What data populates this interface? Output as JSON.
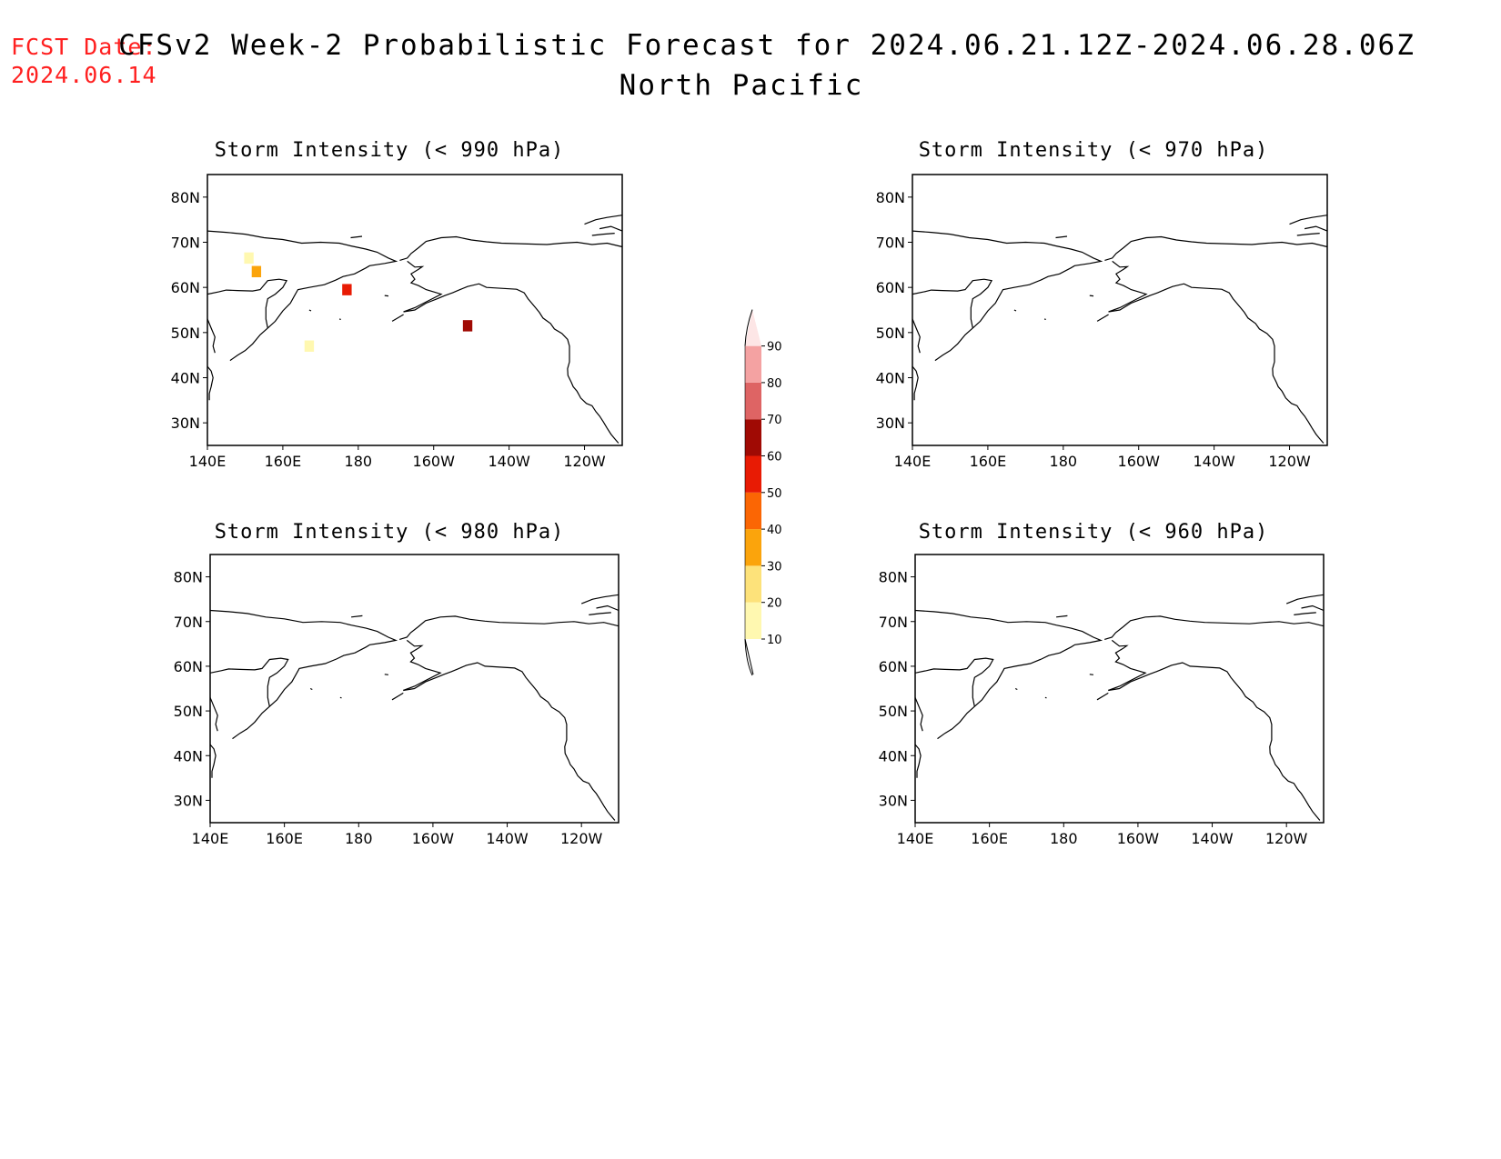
{
  "header": {
    "fcst_label": "FCST Date:",
    "fcst_date": "2024.06.14",
    "title": "CFSv2 Week-2 Probabilistic Forecast for 2024.06.21.12Z-2024.06.28.06Z",
    "subtitle": "North Pacific"
  },
  "panels": [
    {
      "id": "p990",
      "title": "Storm Intensity (< 990 hPa)"
    },
    {
      "id": "p970",
      "title": "Storm Intensity (< 970 hPa)"
    },
    {
      "id": "p980",
      "title": "Storm Intensity (< 980 hPa)"
    },
    {
      "id": "p960",
      "title": "Storm Intensity (< 960 hPa)"
    }
  ],
  "chart_data": {
    "type": "heatmap",
    "map_region": "North Pacific",
    "lon_range": [
      140,
      250
    ],
    "lat_range": [
      25,
      85
    ],
    "x_ticks": [
      "140E",
      "160E",
      "180",
      "160W",
      "140W",
      "120W"
    ],
    "y_ticks": [
      "30N",
      "40N",
      "50N",
      "60N",
      "70N",
      "80N"
    ],
    "colorbar": {
      "levels": [
        10,
        20,
        30,
        40,
        50,
        60,
        70,
        80,
        90
      ],
      "colors": [
        "#fff8b0",
        "#fde27a",
        "#fba40c",
        "#fb6604",
        "#e81b04",
        "#a00a04",
        "#de6464",
        "#f4a2a2",
        "#fde6e6"
      ]
    },
    "fields": [
      {
        "panel": "Storm Intensity (< 990 hPa)",
        "cells": [
          {
            "lon": 151,
            "lat": 66.5,
            "prob": 15
          },
          {
            "lon": 153,
            "lat": 63.5,
            "prob": 35
          },
          {
            "lon": 177,
            "lat": 59.5,
            "prob": 55
          },
          {
            "lon": 209,
            "lat": 51.5,
            "prob": 60
          },
          {
            "lon": 167,
            "lat": 47,
            "prob": 12
          }
        ]
      },
      {
        "panel": "Storm Intensity (< 970 hPa)",
        "cells": []
      },
      {
        "panel": "Storm Intensity (< 980 hPa)",
        "cells": []
      },
      {
        "panel": "Storm Intensity (< 960 hPa)",
        "cells": []
      }
    ]
  }
}
